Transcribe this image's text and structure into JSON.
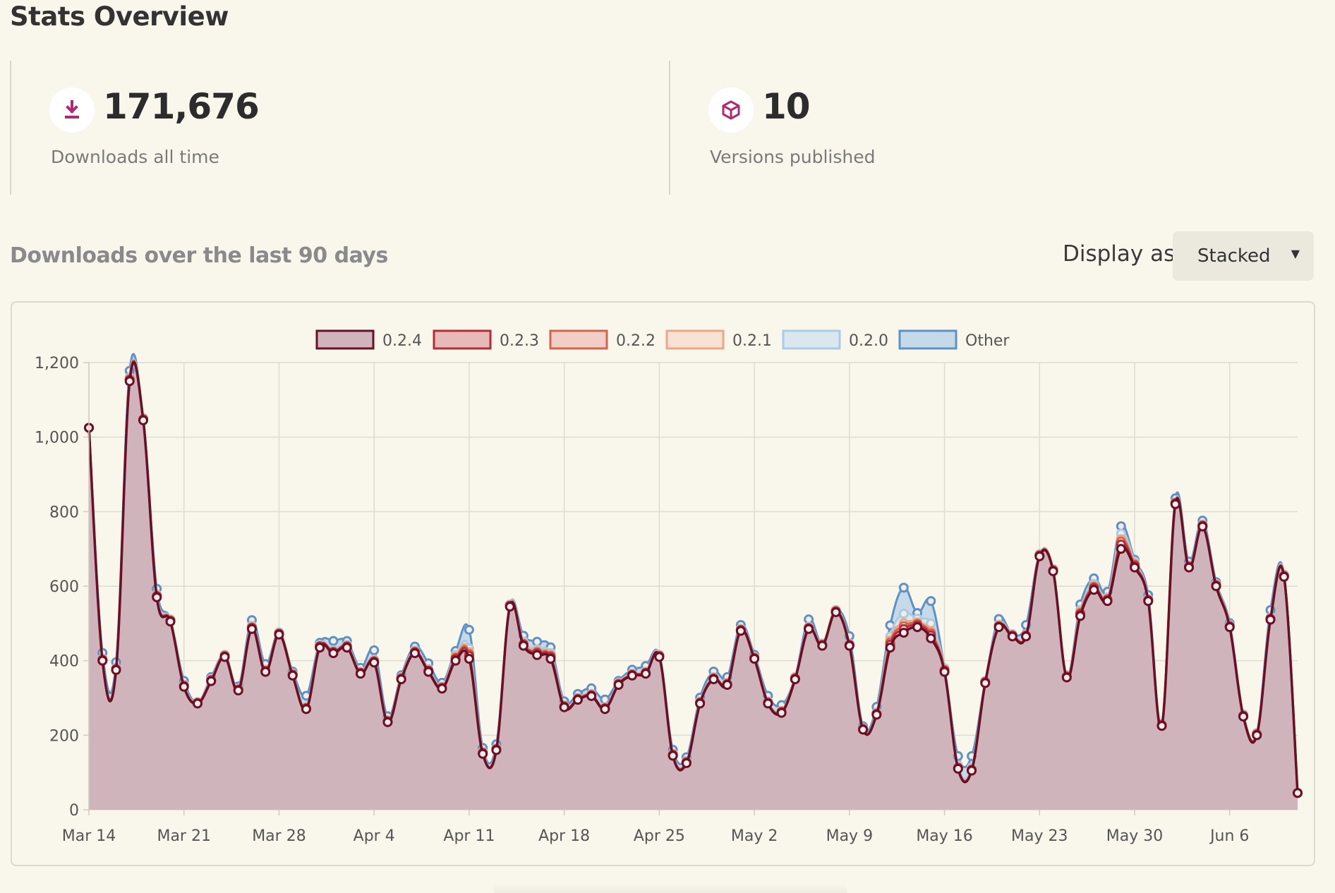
{
  "page": {
    "title": "Stats Overview"
  },
  "stats": [
    {
      "icon": "download-icon",
      "value": "171,676",
      "label": "Downloads all time"
    },
    {
      "icon": "package-icon",
      "value": "10",
      "label": "Versions published"
    }
  ],
  "downloads": {
    "title": "Downloads over the last 90 days",
    "display_label": "Display as",
    "display_value": "Stacked"
  },
  "colors": {
    "accent": "#b02a73",
    "background": "#f9f7ec"
  },
  "chart_data": {
    "type": "area",
    "stacked": true,
    "ylim": [
      0,
      1200
    ],
    "yticks": [
      0,
      200,
      400,
      600,
      800,
      1000,
      1200
    ],
    "ytick_labels": [
      "0",
      "200",
      "400",
      "600",
      "800",
      "1,000",
      "1,200"
    ],
    "xtick_labels": [
      "Mar 14",
      "Mar 21",
      "Mar 28",
      "Apr 4",
      "Apr 11",
      "Apr 18",
      "Apr 25",
      "May 2",
      "May 9",
      "May 16",
      "May 23",
      "May 30",
      "Jun 6"
    ],
    "grid": true,
    "legend": "top-center",
    "series": [
      {
        "name": "0.2.4",
        "stroke": "#6b0f24",
        "fill": "#cfb5bb",
        "values": [
          1025,
          400,
          375,
          1150,
          1045,
          570,
          505,
          330,
          285,
          345,
          410,
          320,
          485,
          370,
          470,
          360,
          270,
          435,
          420,
          435,
          365,
          395,
          235,
          350,
          420,
          370,
          325,
          400,
          405,
          150,
          160,
          545,
          440,
          415,
          405,
          275,
          295,
          305,
          270,
          335,
          360,
          365,
          410,
          145,
          125,
          285,
          350,
          335,
          480,
          405,
          285,
          260,
          350,
          485,
          440,
          530,
          440,
          215,
          255,
          435,
          475,
          490,
          460,
          370,
          110,
          105,
          340,
          490,
          465,
          465,
          680,
          640,
          355,
          520,
          590,
          560,
          700,
          650,
          560,
          225,
          820,
          650,
          760,
          600,
          490,
          250,
          200,
          510,
          625,
          45
        ]
      },
      {
        "name": "0.2.3",
        "stroke": "#b22e38",
        "fill": "#e7b9b9",
        "values": [
          0,
          2,
          2,
          3,
          2,
          3,
          2,
          2,
          1,
          2,
          2,
          2,
          3,
          2,
          2,
          2,
          2,
          3,
          3,
          3,
          2,
          3,
          2,
          2,
          3,
          3,
          2,
          5,
          8,
          2,
          2,
          2,
          3,
          5,
          5,
          2,
          2,
          2,
          2,
          2,
          2,
          2,
          2,
          2,
          2,
          2,
          2,
          2,
          2,
          2,
          2,
          2,
          2,
          2,
          2,
          2,
          2,
          1,
          2,
          8,
          10,
          5,
          8,
          3,
          2,
          2,
          2,
          2,
          2,
          2,
          2,
          2,
          2,
          5,
          5,
          3,
          12,
          5,
          2,
          2,
          2,
          2,
          2,
          2,
          2,
          2,
          2,
          2,
          2,
          0
        ]
      },
      {
        "name": "0.2.2",
        "stroke": "#d26450",
        "fill": "#f2cfc6",
        "values": [
          0,
          1,
          1,
          2,
          1,
          1,
          1,
          1,
          1,
          1,
          1,
          1,
          1,
          1,
          1,
          1,
          1,
          1,
          1,
          1,
          1,
          1,
          1,
          1,
          1,
          1,
          1,
          3,
          5,
          1,
          1,
          1,
          2,
          3,
          3,
          1,
          1,
          1,
          1,
          1,
          1,
          1,
          1,
          1,
          1,
          1,
          1,
          1,
          1,
          1,
          1,
          1,
          1,
          1,
          1,
          1,
          1,
          1,
          1,
          6,
          8,
          4,
          6,
          2,
          1,
          1,
          1,
          1,
          1,
          1,
          1,
          1,
          1,
          3,
          3,
          2,
          8,
          3,
          1,
          1,
          1,
          1,
          1,
          1,
          1,
          1,
          1,
          1,
          1,
          0
        ]
      },
      {
        "name": "0.2.1",
        "stroke": "#eca785",
        "fill": "#f8e2d6",
        "values": [
          0,
          1,
          1,
          2,
          1,
          1,
          1,
          1,
          1,
          1,
          1,
          1,
          2,
          1,
          1,
          1,
          1,
          1,
          1,
          1,
          1,
          1,
          1,
          1,
          1,
          1,
          1,
          3,
          5,
          1,
          1,
          1,
          2,
          3,
          3,
          1,
          1,
          1,
          1,
          1,
          1,
          1,
          1,
          1,
          1,
          1,
          1,
          1,
          1,
          1,
          1,
          1,
          1,
          1,
          1,
          1,
          1,
          1,
          1,
          6,
          8,
          4,
          6,
          2,
          1,
          1,
          1,
          1,
          1,
          1,
          1,
          1,
          1,
          3,
          3,
          2,
          6,
          3,
          1,
          1,
          1,
          1,
          1,
          1,
          1,
          1,
          1,
          1,
          1,
          0
        ]
      },
      {
        "name": "0.2.0",
        "stroke": "#a9cbe4",
        "fill": "#dbe7ee",
        "values": [
          0,
          2,
          2,
          3,
          2,
          3,
          2,
          2,
          1,
          2,
          2,
          2,
          3,
          2,
          2,
          2,
          2,
          3,
          3,
          3,
          2,
          3,
          2,
          2,
          3,
          3,
          2,
          5,
          10,
          2,
          2,
          2,
          5,
          5,
          5,
          2,
          2,
          2,
          2,
          2,
          2,
          2,
          2,
          2,
          2,
          2,
          2,
          2,
          2,
          2,
          2,
          2,
          2,
          2,
          2,
          2,
          2,
          1,
          2,
          10,
          25,
          10,
          20,
          3,
          5,
          5,
          2,
          3,
          2,
          2,
          2,
          2,
          2,
          5,
          5,
          3,
          15,
          5,
          2,
          2,
          2,
          2,
          2,
          2,
          2,
          2,
          2,
          2,
          2,
          0
        ]
      },
      {
        "name": "Other",
        "stroke": "#5e92c2",
        "fill": "#c6d9e8",
        "values": [
          0,
          15,
          15,
          18,
          0,
          15,
          0,
          10,
          0,
          5,
          0,
          5,
          15,
          15,
          0,
          5,
          30,
          5,
          25,
          10,
          10,
          25,
          10,
          5,
          10,
          15,
          10,
          10,
          50,
          10,
          10,
          0,
          15,
          20,
          15,
          10,
          10,
          15,
          20,
          5,
          10,
          15,
          0,
          10,
          10,
          10,
          15,
          15,
          10,
          5,
          15,
          15,
          0,
          20,
          0,
          0,
          20,
          5,
          15,
          30,
          70,
          15,
          60,
          0,
          25,
          30,
          0,
          15,
          0,
          25,
          0,
          0,
          0,
          15,
          15,
          15,
          20,
          5,
          10,
          0,
          10,
          10,
          10,
          5,
          5,
          0,
          0,
          20,
          0,
          0
        ]
      }
    ]
  }
}
